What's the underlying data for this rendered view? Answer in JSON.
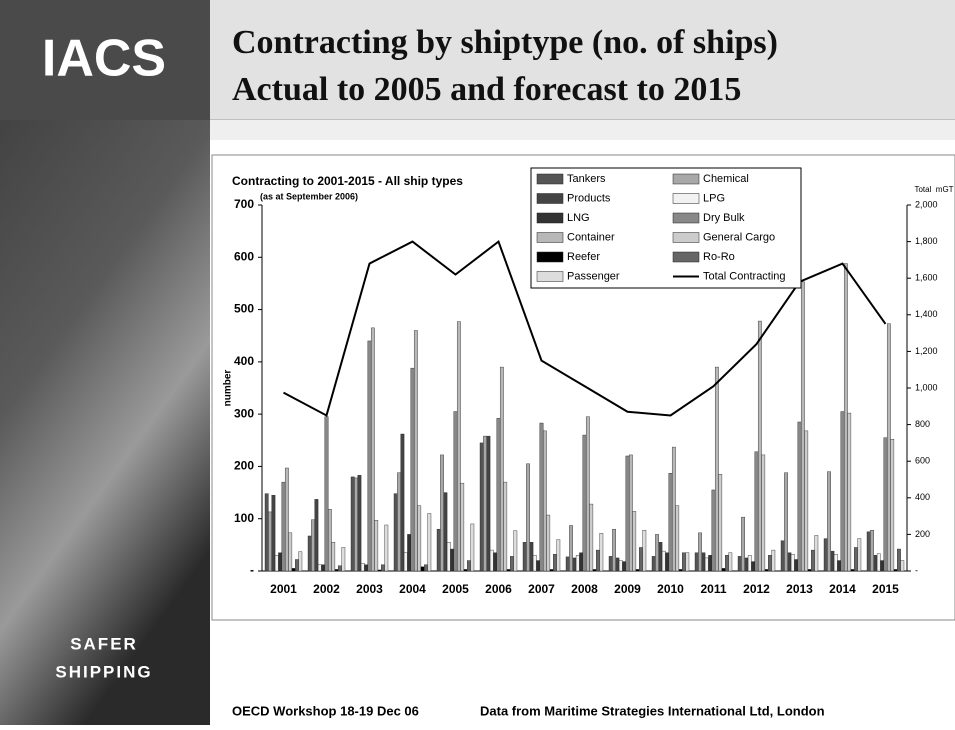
{
  "logo": "IACS",
  "slide_title": [
    "Contracting by shiptype (no. of ships)",
    "Actual to 2005 and forecast to 2015"
  ],
  "tagline": [
    "SAFER",
    "SHIPPING"
  ],
  "footer": {
    "left": "OECD Workshop 18-19 Dec 06",
    "right": "Data from Maritime Strategies International Ltd, London"
  },
  "chart_data": {
    "type": "bar",
    "title": "Contracting to 2001-2015 - All ship types",
    "subtitle": "(as at September 2006)",
    "ylabel": "number",
    "y2label": "Total  mGT",
    "categories": [
      "2001",
      "2002",
      "2003",
      "2004",
      "2005",
      "2006",
      "2007",
      "2008",
      "2009",
      "2010",
      "2011",
      "2012",
      "2013",
      "2014",
      "2015"
    ],
    "ylim": [
      0,
      700
    ],
    "yticks": [
      {
        "value": 0,
        "label": "-"
      },
      100,
      200,
      300,
      400,
      500,
      600,
      700
    ],
    "y2lim": [
      0,
      2000
    ],
    "y2ticks": [
      {
        "value": 0,
        "label": "-"
      },
      200,
      400,
      600,
      800,
      {
        "value": 1000,
        "label": "1,000"
      },
      {
        "value": 1200,
        "label": "1,200"
      },
      {
        "value": 1400,
        "label": "1,400"
      },
      {
        "value": 1600,
        "label": "1,600"
      },
      {
        "value": 1800,
        "label": "1,800"
      },
      {
        "value": 2000,
        "label": "2,000"
      }
    ],
    "series": [
      {
        "name": "Tankers",
        "color": "#555555",
        "values": [
          148,
          67,
          180,
          148,
          80,
          245,
          55,
          27,
          28,
          28,
          35,
          28,
          58,
          62,
          75
        ]
      },
      {
        "name": "Chemical",
        "color": "#a8a8a8",
        "values": [
          113,
          98,
          178,
          188,
          222,
          258,
          205,
          87,
          80,
          70,
          73,
          103,
          188,
          190,
          78
        ]
      },
      {
        "name": "Products",
        "color": "#444444",
        "values": [
          145,
          137,
          183,
          262,
          150,
          258,
          55,
          25,
          25,
          55,
          35,
          25,
          35,
          38,
          30
        ]
      },
      {
        "name": "LPG",
        "color": "#f2f2f2",
        "values": [
          30,
          12,
          15,
          35,
          55,
          40,
          30,
          30,
          20,
          38,
          25,
          30,
          32,
          32,
          33
        ]
      },
      {
        "name": "LNG",
        "color": "#333333",
        "values": [
          35,
          12,
          12,
          70,
          42,
          35,
          20,
          35,
          18,
          35,
          30,
          18,
          22,
          20,
          20
        ]
      },
      {
        "name": "Dry Bulk",
        "color": "#888888",
        "values": [
          170,
          295,
          440,
          388,
          305,
          292,
          283,
          260,
          220,
          187,
          155,
          228,
          285,
          305,
          255
        ]
      },
      {
        "name": "Container",
        "color": "#b8b8b8",
        "values": [
          197,
          118,
          465,
          460,
          477,
          390,
          268,
          295,
          222,
          237,
          390,
          478,
          553,
          588,
          473
        ]
      },
      {
        "name": "General Cargo",
        "color": "#cccccc",
        "values": [
          73,
          55,
          97,
          125,
          168,
          170,
          107,
          128,
          114,
          125,
          185,
          222,
          268,
          302,
          252
        ]
      },
      {
        "name": "Reefer",
        "color": "#000000",
        "values": [
          5,
          3,
          2,
          8,
          3,
          3,
          3,
          3,
          3,
          3,
          5,
          3,
          3,
          3,
          3
        ]
      },
      {
        "name": "Ro-Ro",
        "color": "#666666",
        "values": [
          22,
          10,
          12,
          12,
          20,
          28,
          32,
          40,
          45,
          35,
          30,
          30,
          40,
          45,
          42
        ]
      },
      {
        "name": "Passenger",
        "color": "#dddddd",
        "values": [
          37,
          45,
          88,
          110,
          90,
          77,
          60,
          72,
          78,
          35,
          35,
          40,
          68,
          62,
          20
        ]
      },
      {
        "name": "Total Contracting",
        "color": "#000000",
        "type": "line",
        "axis": "y2",
        "values": [
          975,
          850,
          1680,
          1800,
          1620,
          1800,
          1150,
          1010,
          870,
          850,
          1010,
          1240,
          1580,
          1680,
          1350
        ]
      }
    ]
  }
}
